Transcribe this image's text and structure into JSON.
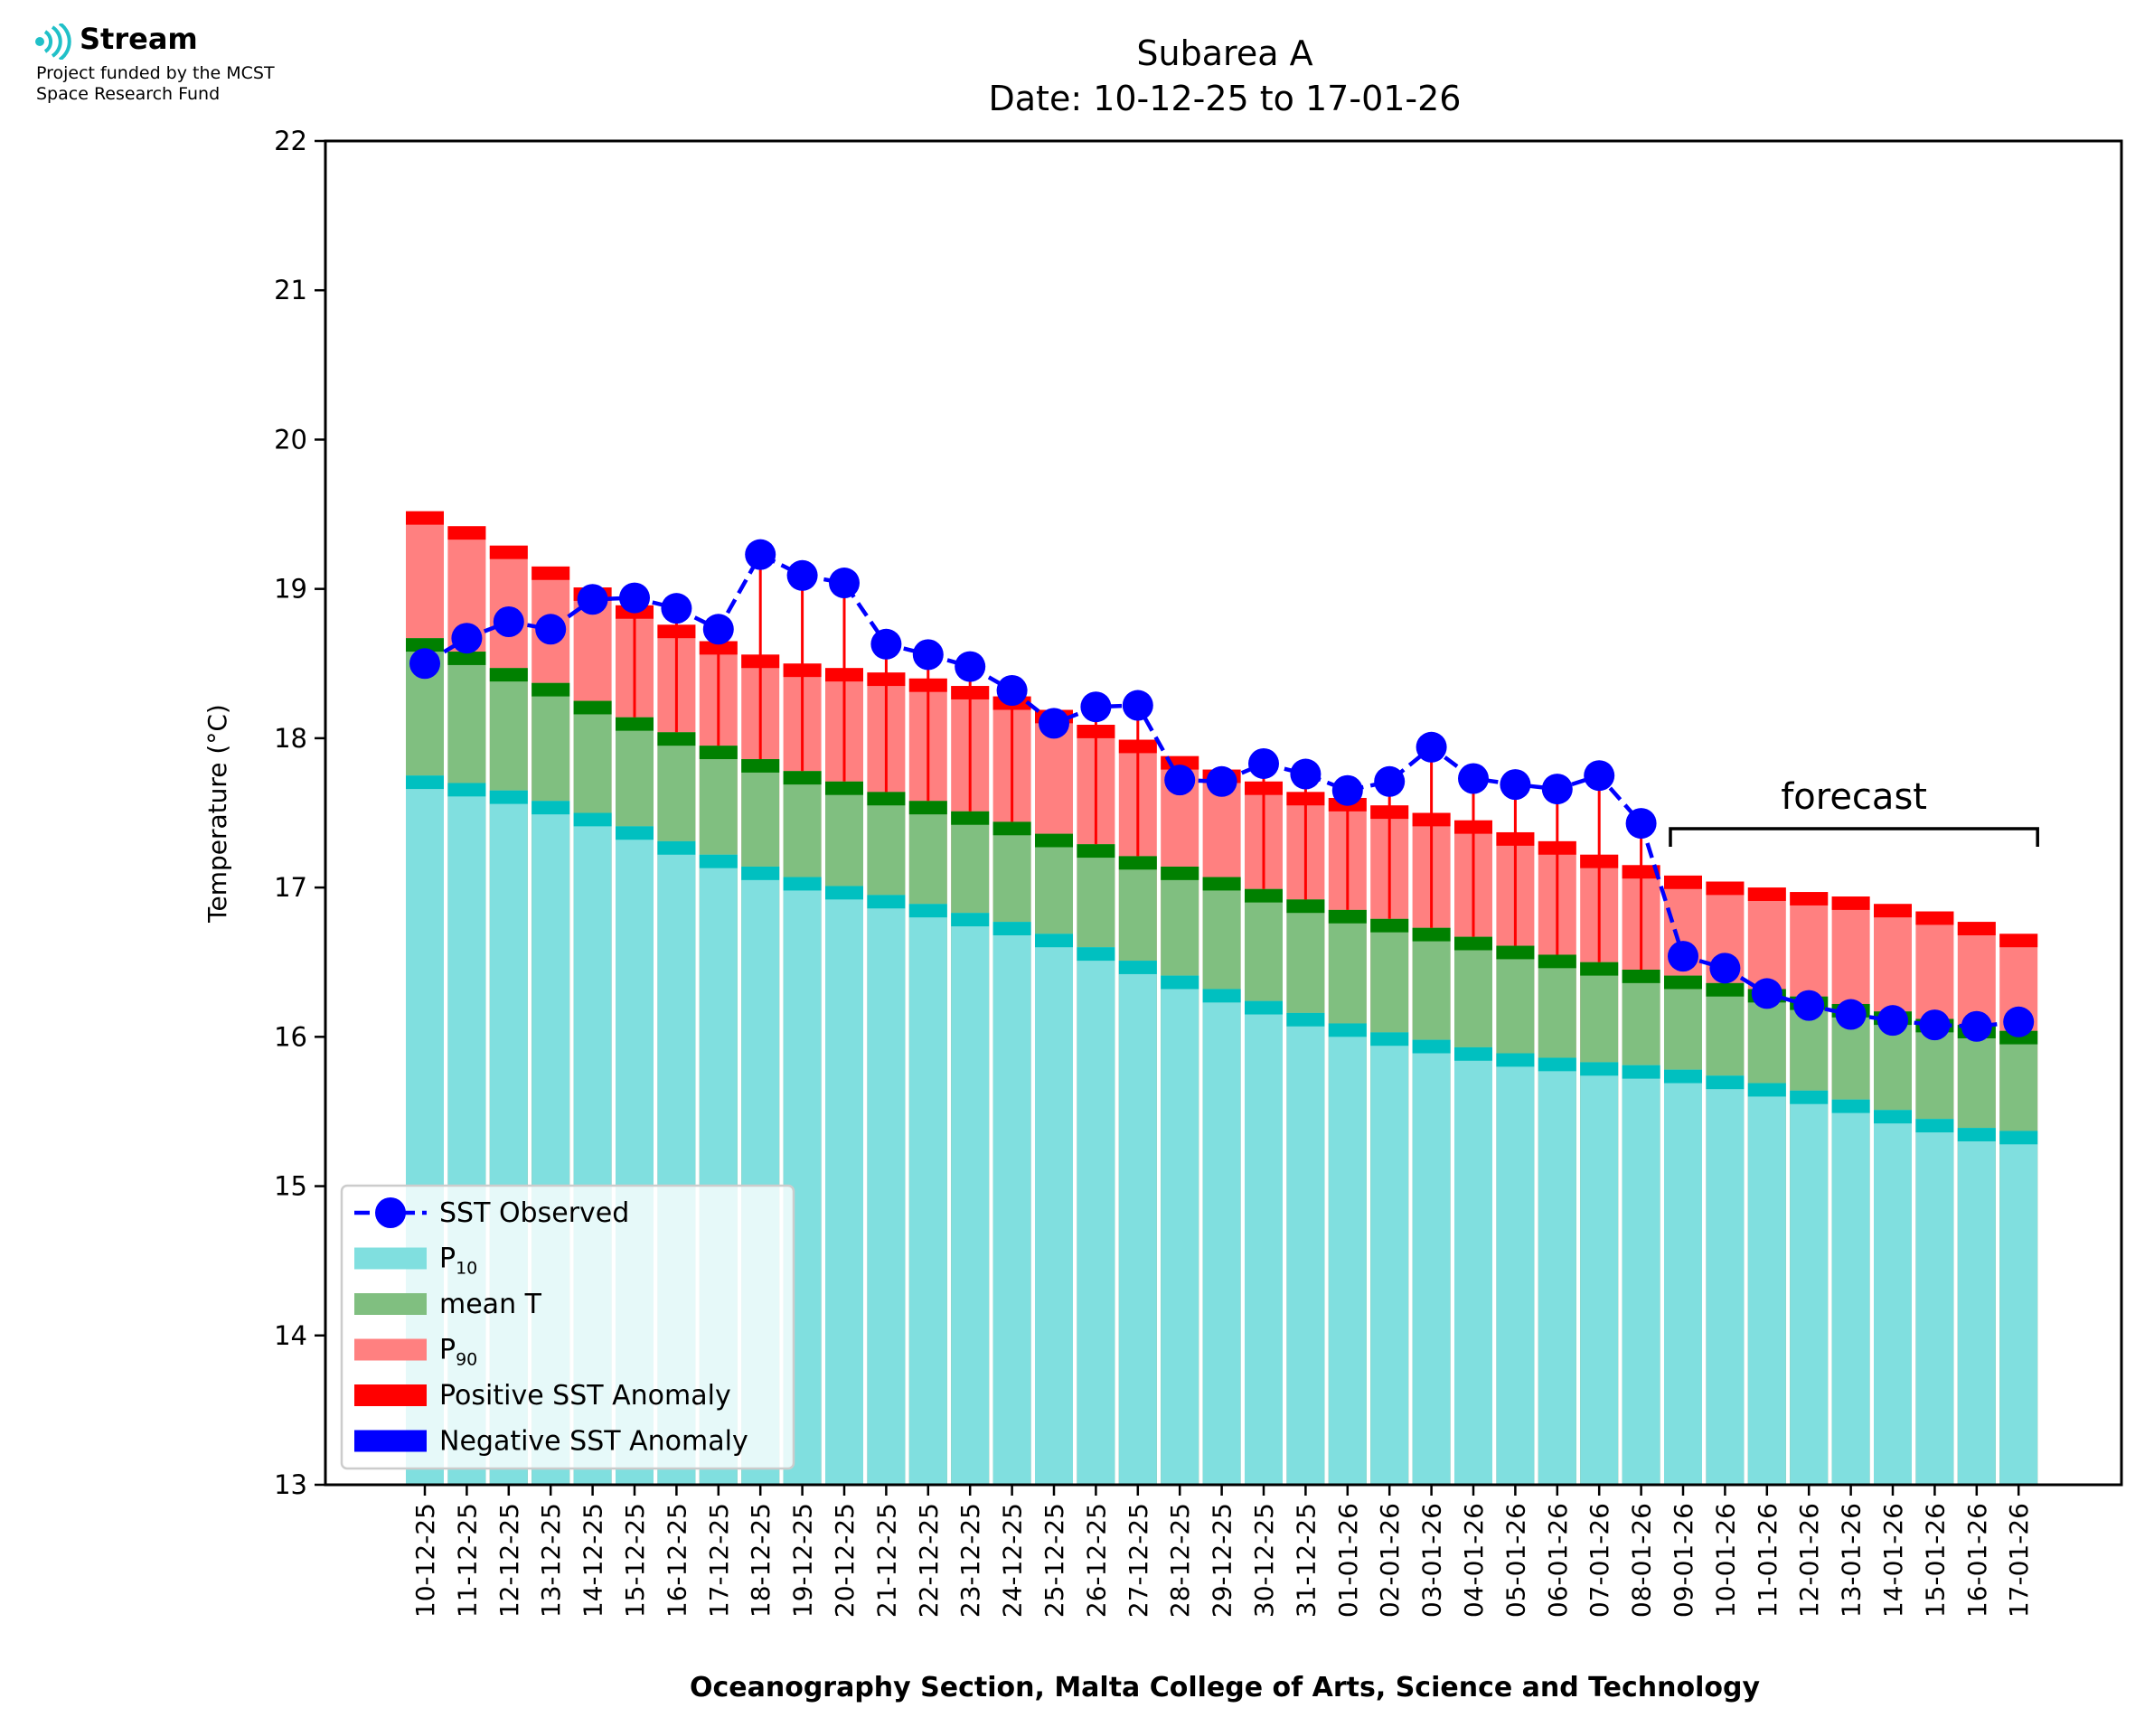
{
  "logo": {
    "name": "Stream",
    "funding_line1": "Project funded by the MCST",
    "funding_line2": "Space Research Fund"
  },
  "colors": {
    "p10": "#80dfdf",
    "p10_edge": "#00c0c0",
    "mean": "#80bf80",
    "mean_edge": "#008000",
    "p90": "#ff8080",
    "p90_edge": "#ff0000",
    "observed": "#0000ff",
    "positive_anomaly": "#ff0000",
    "negative_anomaly": "#0000ff",
    "forecast_bracket": "#000000"
  },
  "chart_data": {
    "type": "bar",
    "title": "Subarea A",
    "subtitle": "Date: 10-12-25 to 17-01-26",
    "xlabel": "Oceanography Section, Malta College of Arts, Science and Technology",
    "ylabel": "Temperature (°C)",
    "ylim": [
      13,
      22
    ],
    "yticks": [
      13,
      14,
      15,
      16,
      17,
      18,
      19,
      20,
      21,
      22
    ],
    "grid": false,
    "legend_position": "lower-left",
    "legend": [
      {
        "key": "observed",
        "label": "SST Observed",
        "sub": ""
      },
      {
        "key": "p10",
        "label": "P",
        "sub": "10"
      },
      {
        "key": "mean",
        "label": "mean T",
        "sub": ""
      },
      {
        "key": "p90",
        "label": "P",
        "sub": "90"
      },
      {
        "key": "positive_anomaly",
        "label": "Positive SST Anomaly",
        "sub": ""
      },
      {
        "key": "negative_anomaly",
        "label": "Negative SST Anomaly",
        "sub": ""
      }
    ],
    "annotation": {
      "text": "forecast",
      "from": "09-01-26",
      "to": "17-01-26"
    },
    "categories": [
      "10-12-25",
      "11-12-25",
      "12-12-25",
      "13-12-25",
      "14-12-25",
      "15-12-25",
      "16-12-25",
      "17-12-25",
      "18-12-25",
      "19-12-25",
      "20-12-25",
      "21-12-25",
      "22-12-25",
      "23-12-25",
      "24-12-25",
      "25-12-25",
      "26-12-25",
      "27-12-25",
      "28-12-25",
      "29-12-25",
      "30-12-25",
      "31-12-25",
      "01-01-26",
      "02-01-26",
      "03-01-26",
      "04-01-26",
      "05-01-26",
      "06-01-26",
      "07-01-26",
      "08-01-26",
      "09-01-26",
      "10-01-26",
      "11-01-26",
      "12-01-26",
      "13-01-26",
      "14-01-26",
      "15-01-26",
      "16-01-26",
      "17-01-26"
    ],
    "series": [
      {
        "name": "P10",
        "values": [
          17.75,
          17.7,
          17.65,
          17.58,
          17.5,
          17.41,
          17.31,
          17.22,
          17.14,
          17.07,
          17.01,
          16.95,
          16.89,
          16.83,
          16.77,
          16.69,
          16.6,
          16.51,
          16.41,
          16.32,
          16.24,
          16.16,
          16.09,
          16.03,
          15.98,
          15.93,
          15.89,
          15.86,
          15.83,
          15.81,
          15.78,
          15.74,
          15.69,
          15.64,
          15.58,
          15.51,
          15.45,
          15.39,
          15.37
        ]
      },
      {
        "name": "mean T",
        "values": [
          18.67,
          18.58,
          18.47,
          18.37,
          18.25,
          18.14,
          18.04,
          17.95,
          17.86,
          17.78,
          17.71,
          17.64,
          17.58,
          17.51,
          17.44,
          17.36,
          17.29,
          17.21,
          17.14,
          17.07,
          16.99,
          16.92,
          16.85,
          16.79,
          16.73,
          16.67,
          16.61,
          16.55,
          16.5,
          16.45,
          16.41,
          16.36,
          16.32,
          16.27,
          16.22,
          16.17,
          16.12,
          16.08,
          16.04
        ]
      },
      {
        "name": "P90",
        "values": [
          19.52,
          19.42,
          19.29,
          19.15,
          19.01,
          18.89,
          18.76,
          18.65,
          18.56,
          18.5,
          18.47,
          18.44,
          18.4,
          18.35,
          18.28,
          18.19,
          18.09,
          17.99,
          17.88,
          17.79,
          17.71,
          17.64,
          17.6,
          17.55,
          17.5,
          17.45,
          17.37,
          17.31,
          17.22,
          17.15,
          17.08,
          17.04,
          17.0,
          16.97,
          16.94,
          16.89,
          16.84,
          16.77,
          16.69
        ]
      },
      {
        "name": "SST Observed",
        "values": [
          18.5,
          18.67,
          18.78,
          18.73,
          18.93,
          18.94,
          18.87,
          18.73,
          19.23,
          19.09,
          19.04,
          18.63,
          18.56,
          18.48,
          18.32,
          18.1,
          18.21,
          18.22,
          17.72,
          17.71,
          17.83,
          17.76,
          17.65,
          17.71,
          17.94,
          17.73,
          17.69,
          17.66,
          17.75,
          17.43,
          16.54,
          16.46,
          16.29,
          16.21,
          16.15,
          16.11,
          16.08,
          16.07,
          16.1
        ]
      }
    ]
  }
}
